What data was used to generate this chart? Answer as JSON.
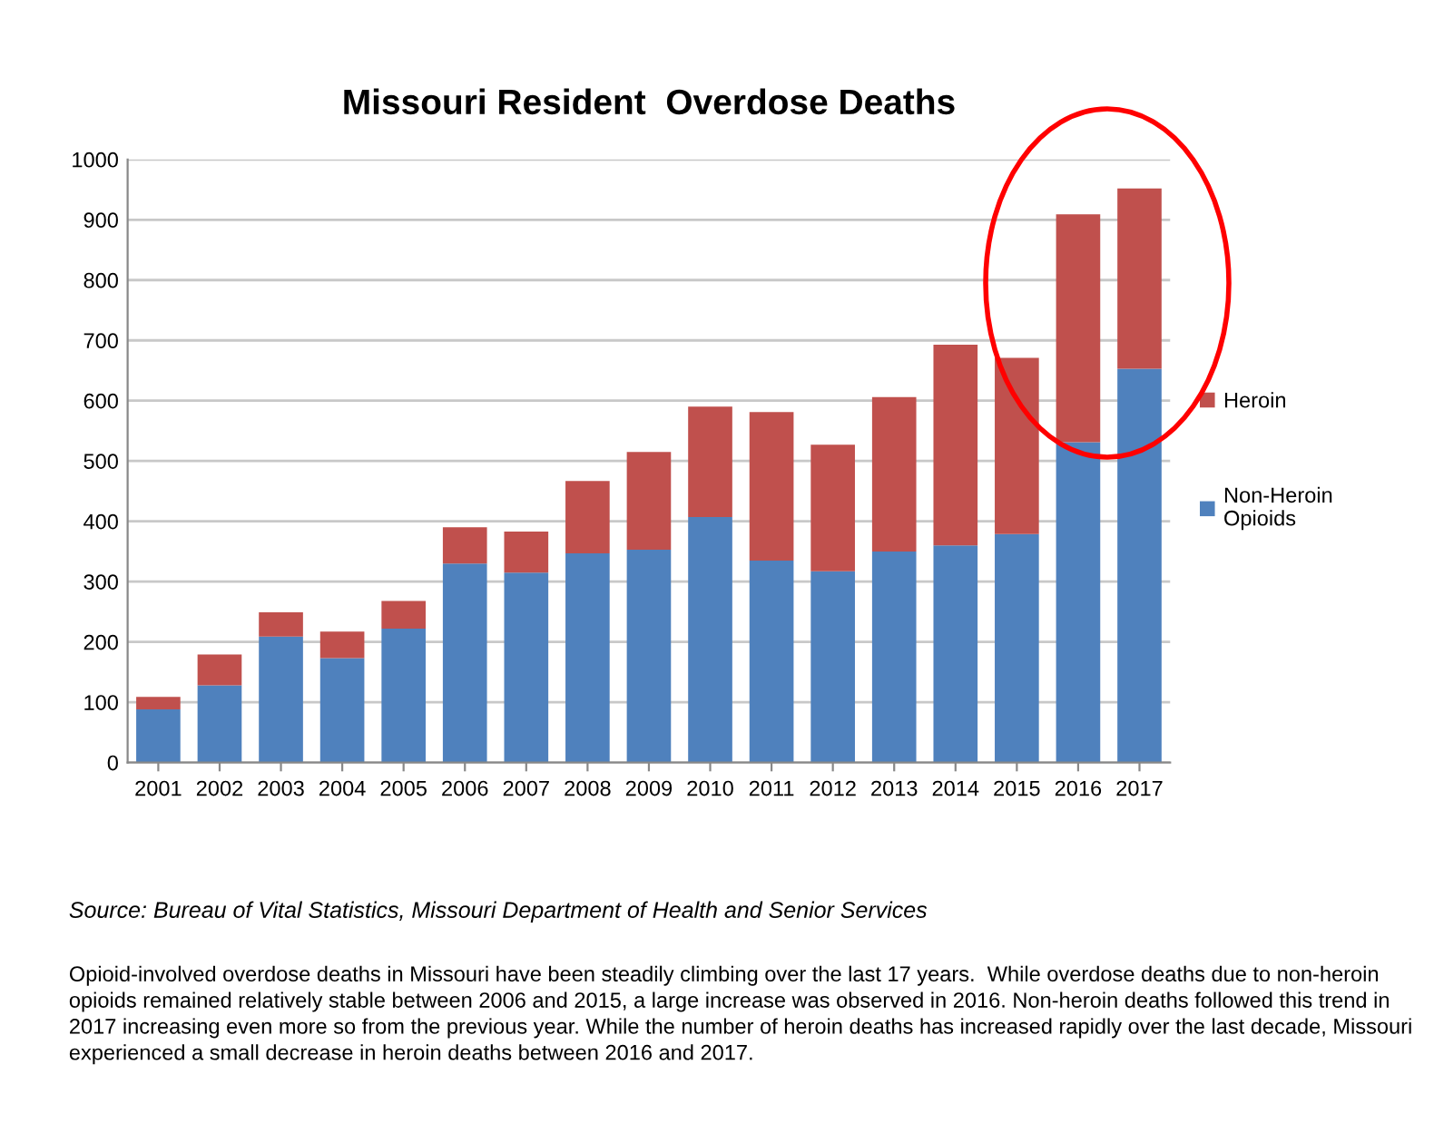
{
  "chart_data": {
    "type": "bar",
    "title": "Missouri Resident  Overdose Deaths",
    "categories": [
      "2001",
      "2002",
      "2003",
      "2004",
      "2005",
      "2006",
      "2007",
      "2008",
      "2009",
      "2010",
      "2011",
      "2012",
      "2013",
      "2014",
      "2015",
      "2016",
      "2017"
    ],
    "stacked": true,
    "series": [
      {
        "name": "Non-Heroin Opioids",
        "color": "#4f81bd",
        "values": [
          88,
          128,
          209,
          173,
          222,
          330,
          315,
          347,
          353,
          407,
          335,
          317,
          350,
          360,
          379,
          531,
          653
        ]
      },
      {
        "name": "Heroin",
        "color": "#c0504d",
        "values": [
          21,
          51,
          40,
          44,
          46,
          60,
          68,
          120,
          162,
          183,
          246,
          210,
          256,
          333,
          292,
          378,
          299
        ]
      }
    ],
    "ylim": [
      0,
      1000
    ],
    "yticks": [
      0,
      100,
      200,
      300,
      400,
      500,
      600,
      700,
      800,
      900,
      1000
    ],
    "grid": "y",
    "legend": "right",
    "annotations": [
      "Source: Bureau of Vital Statistics, Missouri Department of Health and Senior Services",
      "Opioid-involved overdose deaths in Missouri have been steadily climbing over the last 17 years.  While overdose deaths due to non-heroin opioids remained relatively stable between 2006 and 2015, a large increase was observed in 2016. Non-heroin deaths followed this trend in 2017 increasing even more so from the previous year. While the number of heroin deaths has increased rapidly over the last decade, Missouri experienced a small decrease in heroin deaths between 2016 and 2017."
    ]
  }
}
